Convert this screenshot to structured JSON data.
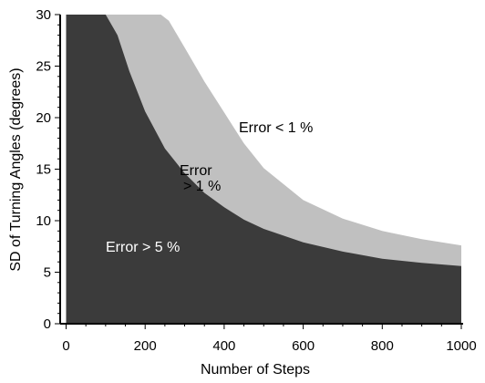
{
  "chart_data": {
    "type": "area",
    "xlabel": "Number of Steps",
    "ylabel": "SD of Turning Angles (degrees)",
    "xlim": [
      -15,
      1000
    ],
    "ylim": [
      0,
      30
    ],
    "x_ticks": [
      0,
      200,
      400,
      600,
      800,
      1000
    ],
    "y_ticks": [
      0,
      5,
      10,
      15,
      20,
      25,
      30
    ],
    "grid": false,
    "regions": [
      {
        "label": "Error > 5 %",
        "color": "#3b3b3b",
        "text_color": "#ffffff",
        "x": [
          0,
          10,
          20,
          30,
          40,
          50,
          60,
          80,
          100,
          130,
          160,
          200,
          250,
          300,
          350,
          400,
          450,
          500,
          600,
          700,
          800,
          900,
          1000
        ],
        "y": [
          30,
          30,
          30,
          30,
          30,
          30,
          30,
          30,
          30,
          28.0,
          24.5,
          20.6,
          17.0,
          14.6,
          12.7,
          11.3,
          10.1,
          9.2,
          7.9,
          7.0,
          6.3,
          5.9,
          5.6
        ]
      },
      {
        "label_lines": [
          "Error",
          "> 1 %"
        ],
        "color": "#c0c0c0",
        "text_color": "#000000",
        "x": [
          0,
          100,
          200,
          240,
          260,
          300,
          350,
          400,
          450,
          500,
          600,
          700,
          800,
          900,
          1000
        ],
        "y": [
          30,
          30,
          30,
          30,
          29.4,
          26.8,
          23.5,
          20.5,
          17.5,
          15.1,
          12.0,
          10.2,
          9.0,
          8.2,
          7.6
        ]
      },
      {
        "label": "Error  < 1 %",
        "color": "#ffffff",
        "text_color": "#000000"
      }
    ]
  }
}
